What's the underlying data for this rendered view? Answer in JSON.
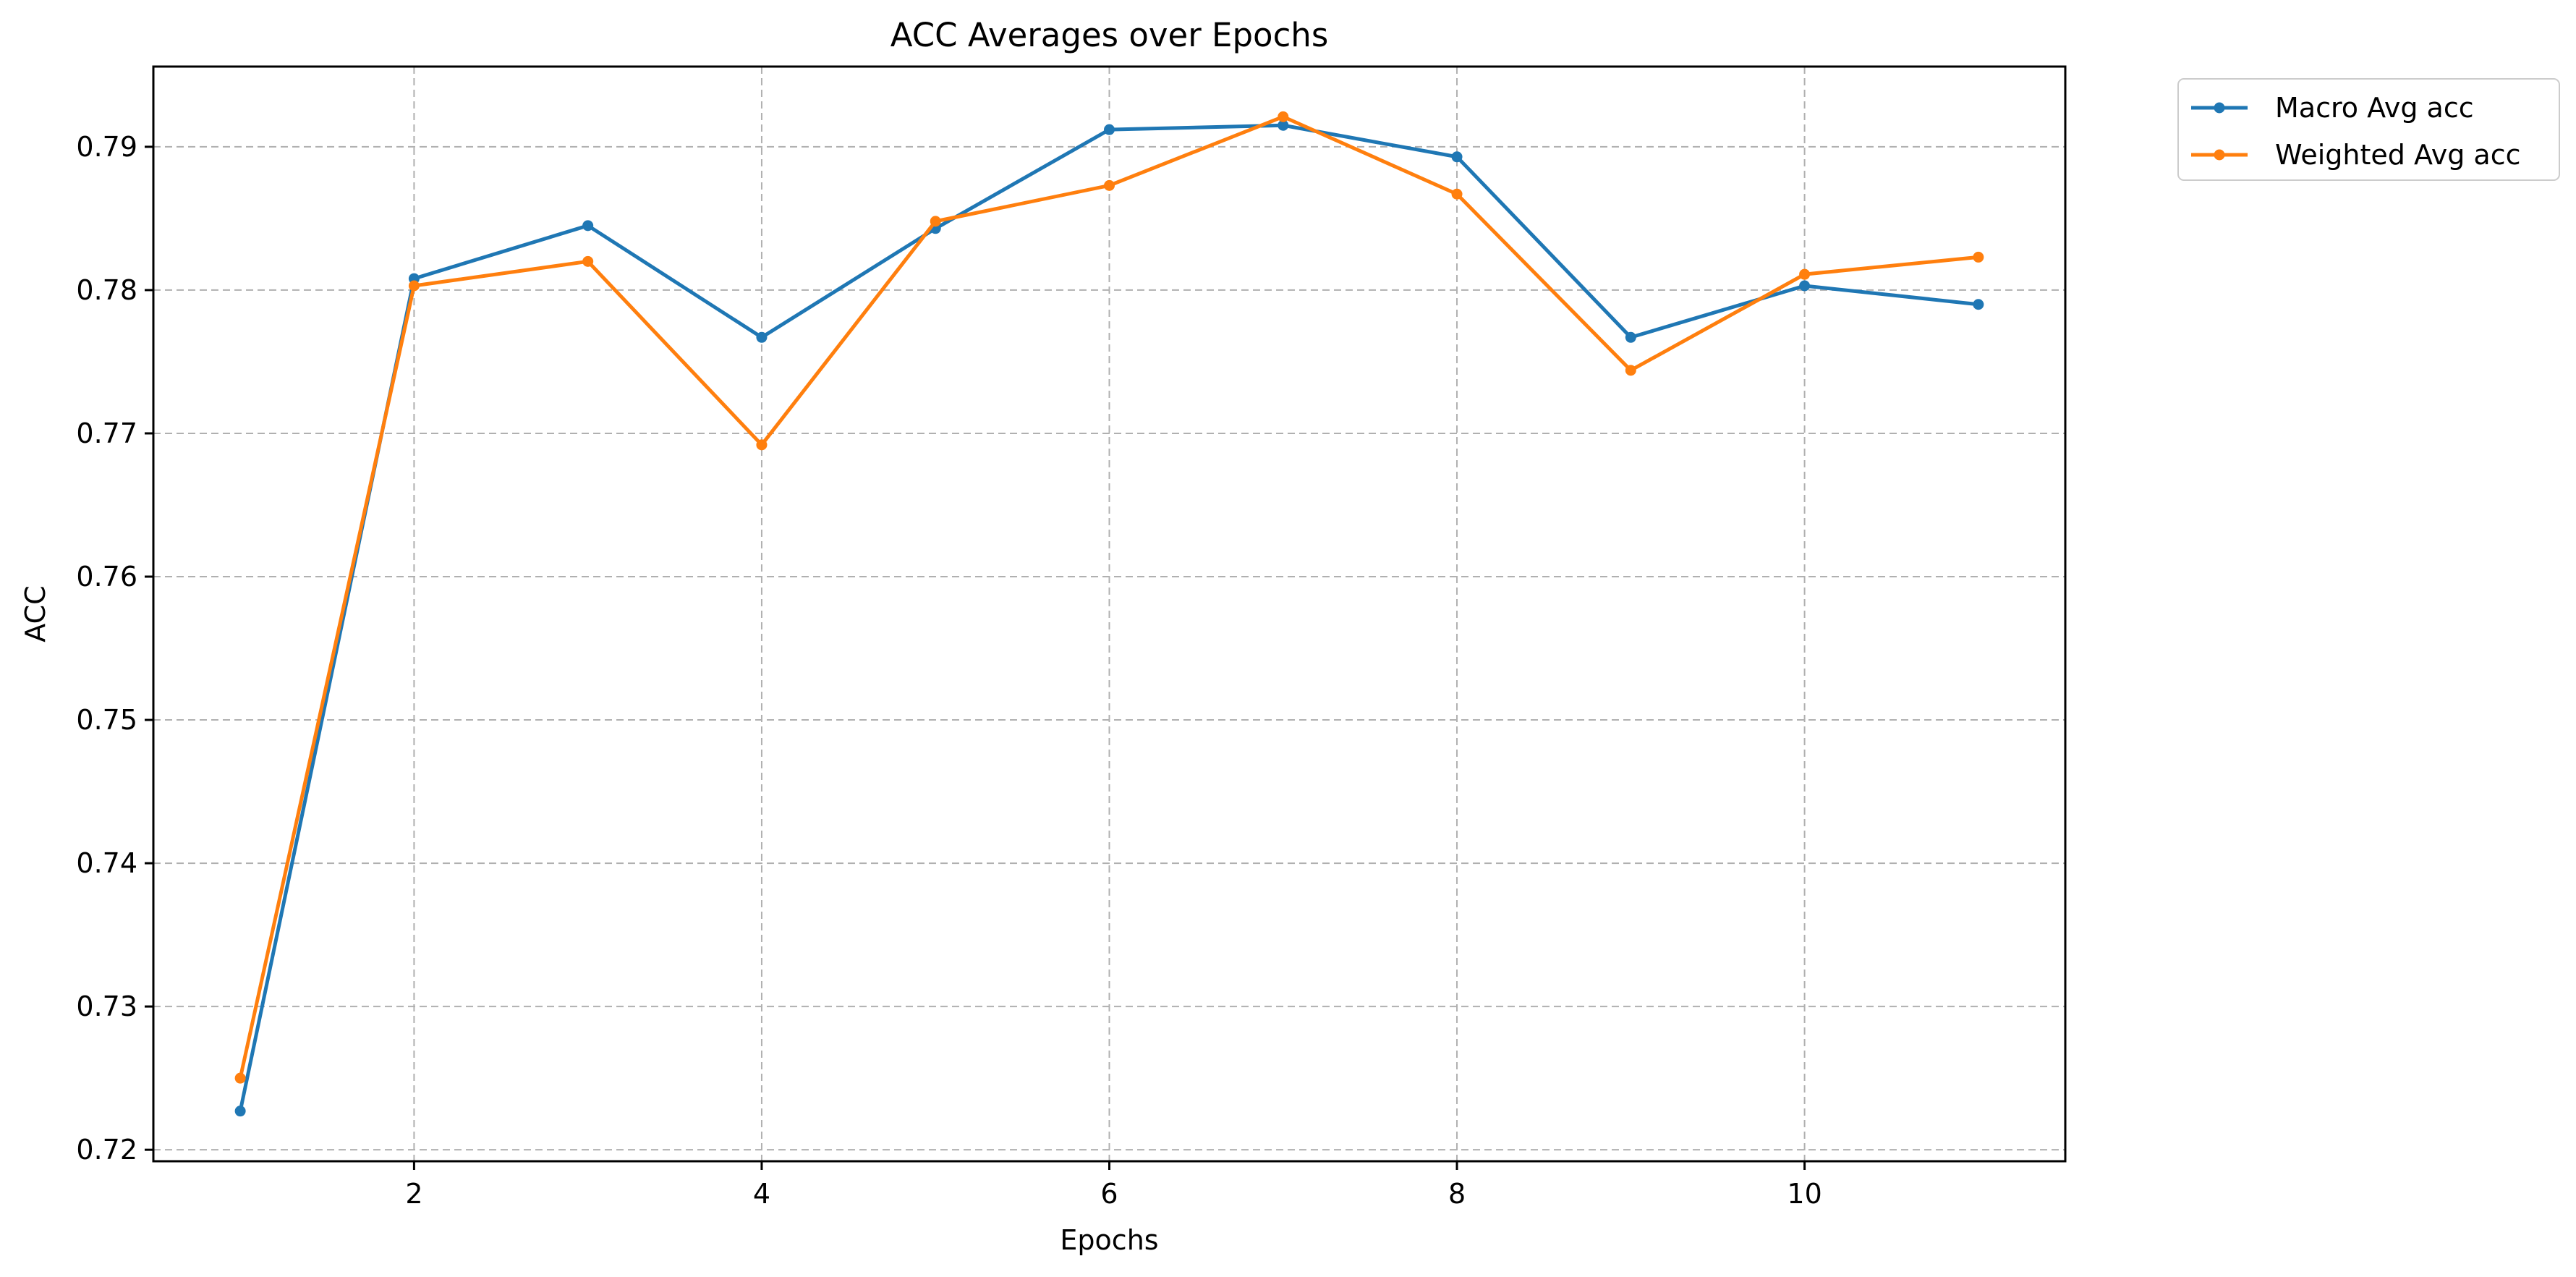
{
  "chart_data": {
    "type": "line",
    "title": "ACC Averages over Epochs",
    "xlabel": "Epochs",
    "ylabel": "ACC",
    "xlim": [
      0.5,
      11.5
    ],
    "ylim": [
      0.7192,
      0.7956
    ],
    "x_ticks": [
      2,
      4,
      6,
      8,
      10
    ],
    "y_ticks": [
      0.72,
      0.73,
      0.74,
      0.75,
      0.76,
      0.77,
      0.78,
      0.79
    ],
    "x_tick_labels": [
      "2",
      "4",
      "6",
      "8",
      "10"
    ],
    "y_tick_labels": [
      "0.72",
      "0.73",
      "0.74",
      "0.75",
      "0.76",
      "0.77",
      "0.78",
      "0.79"
    ],
    "grid": true,
    "legend_position": "outside-top-right",
    "x": [
      1,
      2,
      3,
      4,
      5,
      6,
      7,
      8,
      9,
      10,
      11
    ],
    "series": [
      {
        "name": "Macro Avg acc",
        "color": "#1f77b4",
        "values": [
          0.7227,
          0.7808,
          0.7845,
          0.7767,
          0.7843,
          0.7912,
          0.7915,
          0.7893,
          0.7767,
          0.7803,
          0.779
        ]
      },
      {
        "name": "Weighted Avg acc",
        "color": "#ff7f0e",
        "values": [
          0.725,
          0.7803,
          0.782,
          0.7692,
          0.7848,
          0.7873,
          0.7921,
          0.7867,
          0.7744,
          0.7811,
          0.7823
        ]
      }
    ]
  }
}
